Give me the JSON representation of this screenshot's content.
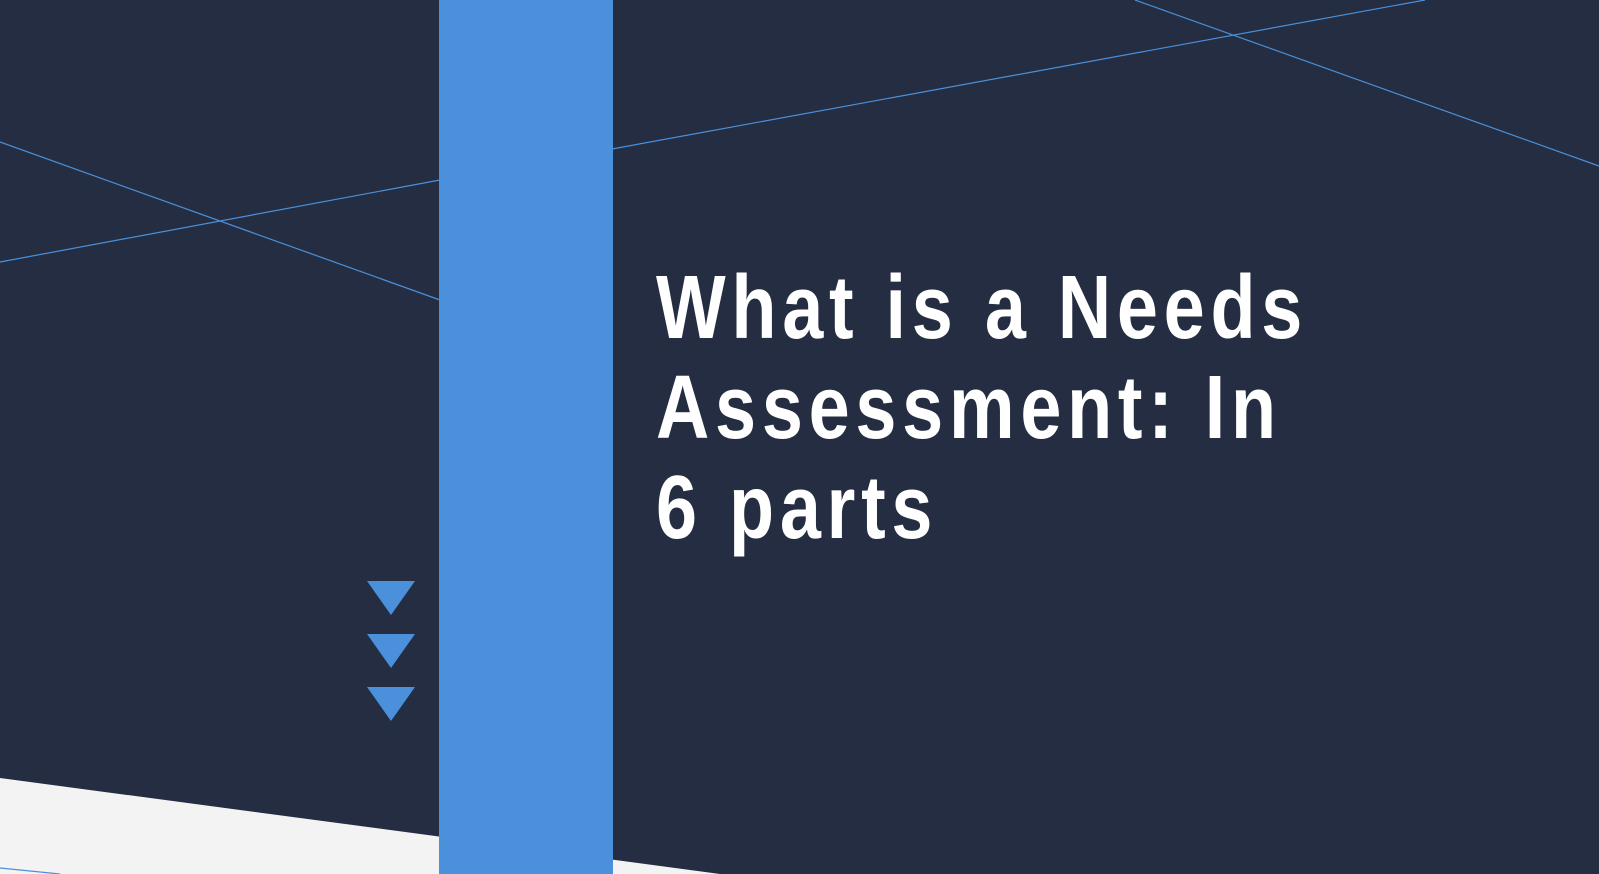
{
  "slide": {
    "title": "What is a Needs Assessment: In 6 parts"
  },
  "colors": {
    "background_dark": "#242d42",
    "accent_blue": "#4a90da",
    "light_gray": "#f3f3f3",
    "title_text": "#ffffff"
  },
  "icons": {
    "decorative": [
      "down-triangle-icon",
      "down-triangle-icon",
      "down-triangle-icon"
    ]
  }
}
